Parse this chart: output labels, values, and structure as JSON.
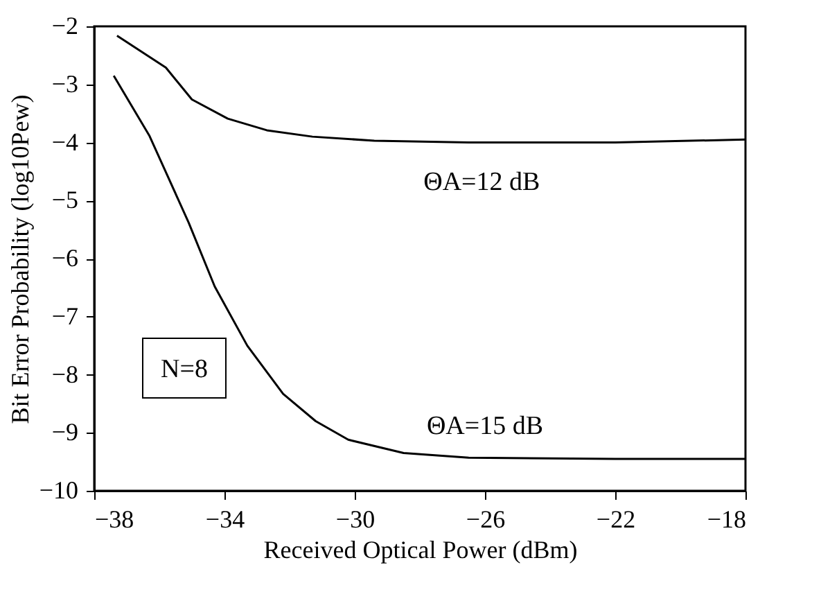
{
  "chart_data": {
    "type": "line",
    "xlabel": "Received Optical Power (dBm)",
    "ylabel": "Bit Error Probability (log10Pew)",
    "xlim": [
      -38,
      -18
    ],
    "xticks": [
      -38,
      -34,
      -30,
      -26,
      -22,
      -18
    ],
    "ylim": [
      -10,
      -2
    ],
    "yticks": [
      -10,
      -9,
      -8,
      -7,
      -6,
      -5,
      -4,
      -3,
      -2
    ],
    "grid": false,
    "line_style": "solid",
    "marker": "none",
    "series": [
      {
        "color": "#000000",
        "x": [
          -37.3,
          -35.8,
          -35.0,
          -33.9,
          -32.7,
          -31.3,
          -29.4,
          -26.5,
          -22,
          -18
        ],
        "values": [
          -2.16,
          -2.71,
          -3.26,
          -3.59,
          -3.79,
          -3.9,
          -3.97,
          -4.0,
          -4.0,
          -3.95
        ]
      },
      {
        "color": "#000000",
        "x": [
          -37.4,
          -36.3,
          -35.1,
          -34.3,
          -33.3,
          -32.2,
          -31.2,
          -30.2,
          -28.5,
          -26.5,
          -22,
          -18
        ],
        "values": [
          -2.85,
          -3.89,
          -5.38,
          -6.48,
          -7.5,
          -8.33,
          -8.8,
          -9.12,
          -9.35,
          -9.43,
          -9.45,
          -9.45
        ]
      }
    ],
    "annotations": [
      "ΘA=12 dB",
      "ΘA=15 dB",
      "N=8"
    ]
  }
}
